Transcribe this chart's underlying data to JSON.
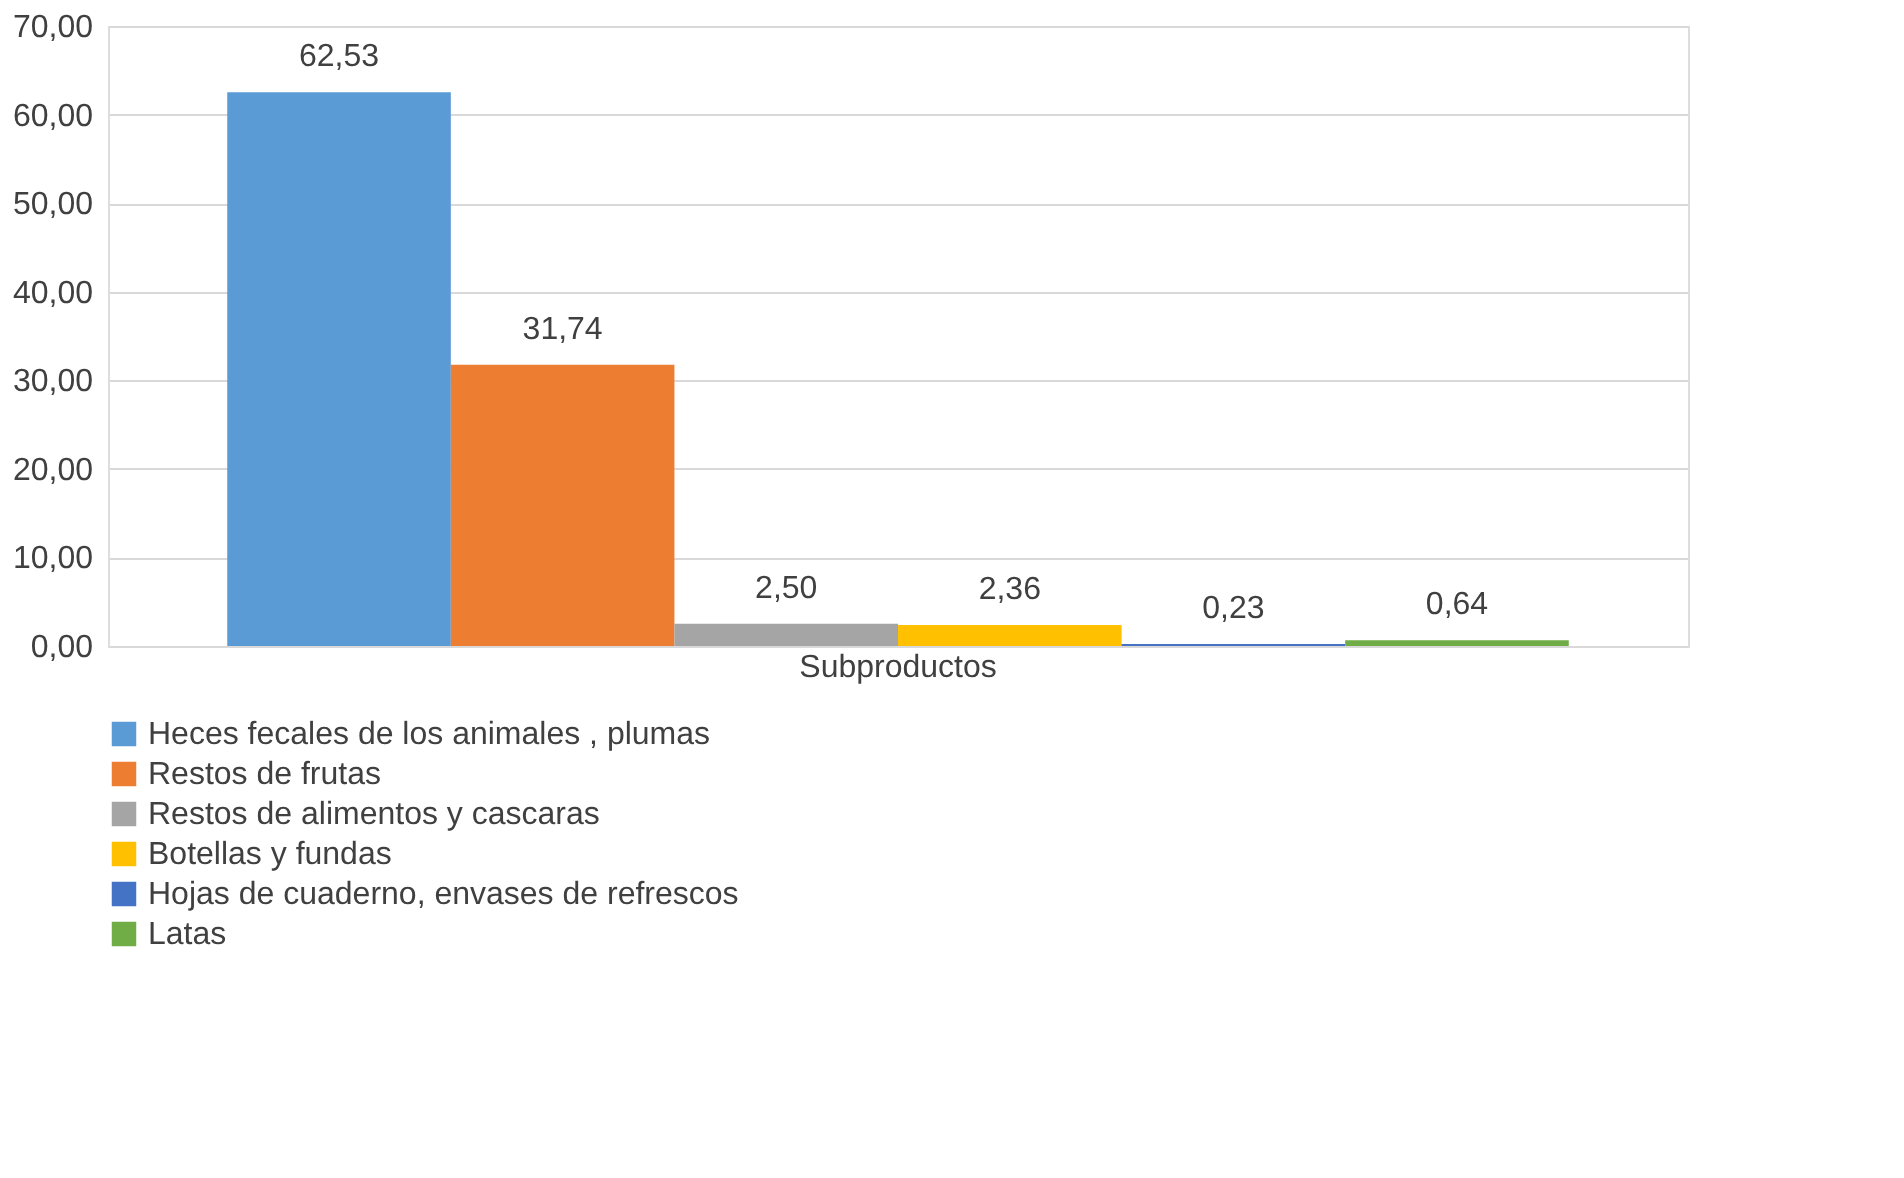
{
  "chart_data": {
    "type": "bar",
    "categories": [
      "Subproductos"
    ],
    "series": [
      {
        "name": "Heces  fecales de los animales , plumas",
        "color": "#5b9bd5",
        "values": [
          62.53
        ],
        "value_labels": [
          "62,53"
        ]
      },
      {
        "name": "Restos de frutas",
        "color": "#ed7d31",
        "values": [
          31.74
        ],
        "value_labels": [
          "31,74"
        ]
      },
      {
        "name": "Restos de alimentos y cascaras",
        "color": "#a5a5a5",
        "values": [
          2.5
        ],
        "value_labels": [
          "2,50"
        ]
      },
      {
        "name": "Botellas y fundas",
        "color": "#ffc000",
        "values": [
          2.36
        ],
        "value_labels": [
          "2,36"
        ]
      },
      {
        "name": "Hojas de cuaderno, envases de refrescos",
        "color": "#4472c4",
        "values": [
          0.23
        ],
        "value_labels": [
          "0,23"
        ]
      },
      {
        "name": "Latas",
        "color": "#70ad47",
        "values": [
          0.64
        ],
        "value_labels": [
          "0,64"
        ]
      }
    ],
    "ylim": [
      0,
      70
    ],
    "yticks": [
      {
        "value": 0,
        "label": "0,00"
      },
      {
        "value": 10,
        "label": "10,00"
      },
      {
        "value": 20,
        "label": "20,00"
      },
      {
        "value": 30,
        "label": "30,00"
      },
      {
        "value": 40,
        "label": "40,00"
      },
      {
        "value": 50,
        "label": "50,00"
      },
      {
        "value": 60,
        "label": "60,00"
      },
      {
        "value": 70,
        "label": "70,00"
      }
    ],
    "grid": "y",
    "legend": "bottom"
  }
}
